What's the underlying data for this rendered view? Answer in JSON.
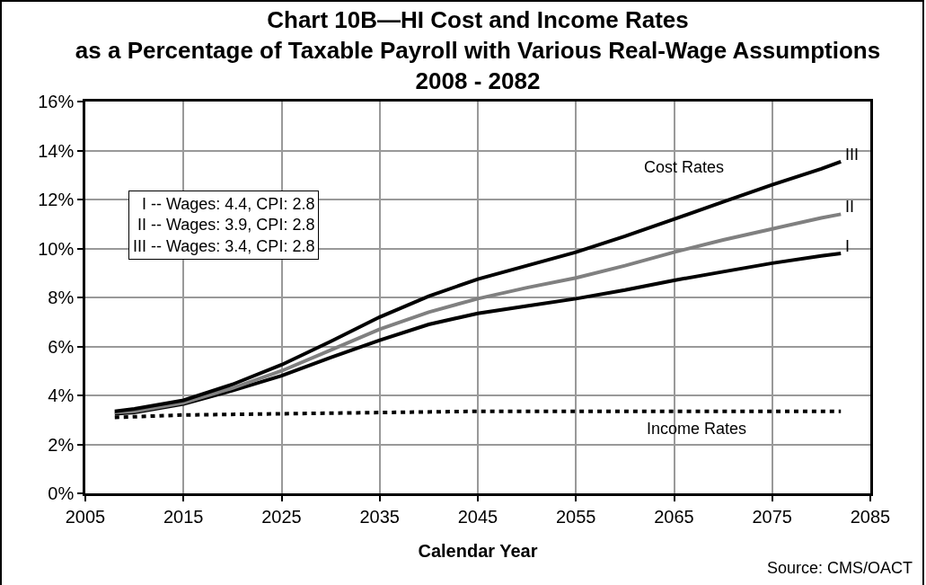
{
  "chart_data": {
    "type": "line",
    "title": "Chart 10B—HI Cost and Income Rates\nas a Percentage of Taxable Payroll with Various Real-Wage Assumptions\n2008 - 2082",
    "xlabel": "Calendar Year",
    "x": [
      2008,
      2010,
      2015,
      2020,
      2025,
      2030,
      2035,
      2040,
      2045,
      2050,
      2055,
      2060,
      2065,
      2070,
      2075,
      2080,
      2082
    ],
    "series": [
      {
        "name": "I",
        "color": "#000000",
        "values": [
          3.25,
          3.3,
          3.65,
          4.2,
          4.8,
          5.55,
          6.25,
          6.9,
          7.35,
          7.65,
          7.95,
          8.3,
          8.7,
          9.05,
          9.4,
          9.7,
          9.8
        ]
      },
      {
        "name": "II",
        "color": "#808080",
        "values": [
          3.3,
          3.35,
          3.7,
          4.3,
          5.0,
          5.85,
          6.7,
          7.4,
          7.95,
          8.4,
          8.8,
          9.3,
          9.85,
          10.35,
          10.8,
          11.25,
          11.4
        ]
      },
      {
        "name": "III",
        "color": "#000000",
        "values": [
          3.35,
          3.45,
          3.8,
          4.45,
          5.25,
          6.2,
          7.2,
          8.05,
          8.75,
          9.3,
          9.85,
          10.5,
          11.2,
          11.9,
          12.6,
          13.25,
          13.55
        ]
      },
      {
        "color": "#000000",
        "line_style": "dotted",
        "x": [
          2008,
          2015,
          2025,
          2035,
          2045,
          2055,
          2065,
          2075,
          2082
        ],
        "values": [
          3.1,
          3.2,
          3.25,
          3.3,
          3.35,
          3.35,
          3.35,
          3.35,
          3.35
        ]
      }
    ],
    "xlim": [
      2005,
      2085
    ],
    "xticks": [
      2005,
      2015,
      2025,
      2035,
      2045,
      2055,
      2065,
      2075,
      2085
    ],
    "ylim": [
      0,
      16
    ],
    "yticks": [
      {
        "value": 0,
        "label": "0%"
      },
      {
        "value": 2,
        "label": "2%"
      },
      {
        "value": 4,
        "label": "4%"
      },
      {
        "value": 6,
        "label": "6%"
      },
      {
        "value": 8,
        "label": "8%"
      },
      {
        "value": 10,
        "label": "10%"
      },
      {
        "value": 12,
        "label": "12%"
      },
      {
        "value": 14,
        "label": "14%"
      },
      {
        "value": 16,
        "label": "16%"
      }
    ],
    "grid": true,
    "line_style": "solid",
    "annotations": [
      "Cost Rates",
      "I -- Wages: 4.4, CPI: 2.8\nII -- Wages: 3.9, CPI: 2.8\nIII -- Wages: 3.4, CPI: 2.8",
      "Income Rates",
      "Source: CMS/OACT"
    ]
  }
}
